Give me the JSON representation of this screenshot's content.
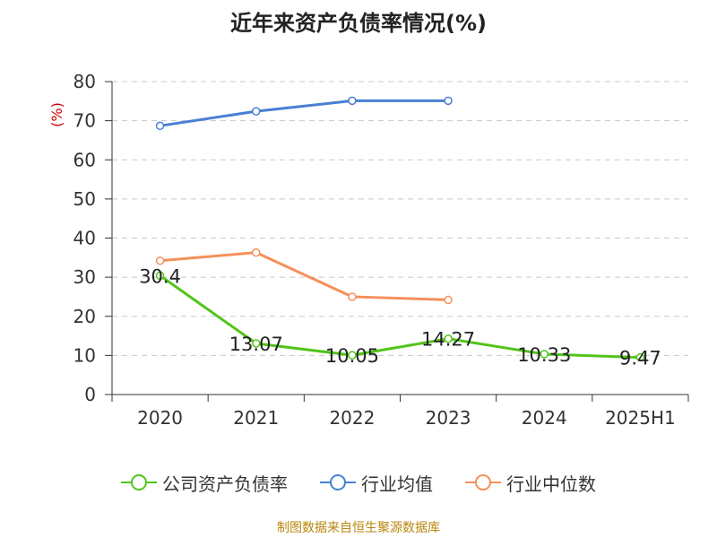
{
  "chart_data": {
    "type": "line",
    "title": "近年来资产负债率情况(%)",
    "ylabel": "(%)",
    "ylim": [
      0,
      80
    ],
    "yticks": [
      0,
      10,
      20,
      30,
      40,
      50,
      60,
      70,
      80
    ],
    "categories": [
      "2020",
      "2021",
      "2022",
      "2023",
      "2024",
      "2025H1"
    ],
    "grid": true,
    "legend_position": "bottom",
    "series": [
      {
        "name": "公司资产负债率",
        "color": "#52c41a",
        "values": [
          30.4,
          13.07,
          10.05,
          14.27,
          10.33,
          9.47
        ],
        "labels": [
          "30.4",
          "13.07",
          "10.05",
          "14.27",
          "10.33",
          "9.47"
        ]
      },
      {
        "name": "行业均值",
        "color": "#4a7fd4",
        "values": [
          68.7,
          72.4,
          75.1,
          75.1,
          null,
          null
        ]
      },
      {
        "name": "行业中位数",
        "color": "#f5905a",
        "values": [
          34.2,
          36.3,
          25.0,
          24.2,
          null,
          null
        ]
      }
    ]
  },
  "source": "制图数据来自恒生聚源数据库"
}
